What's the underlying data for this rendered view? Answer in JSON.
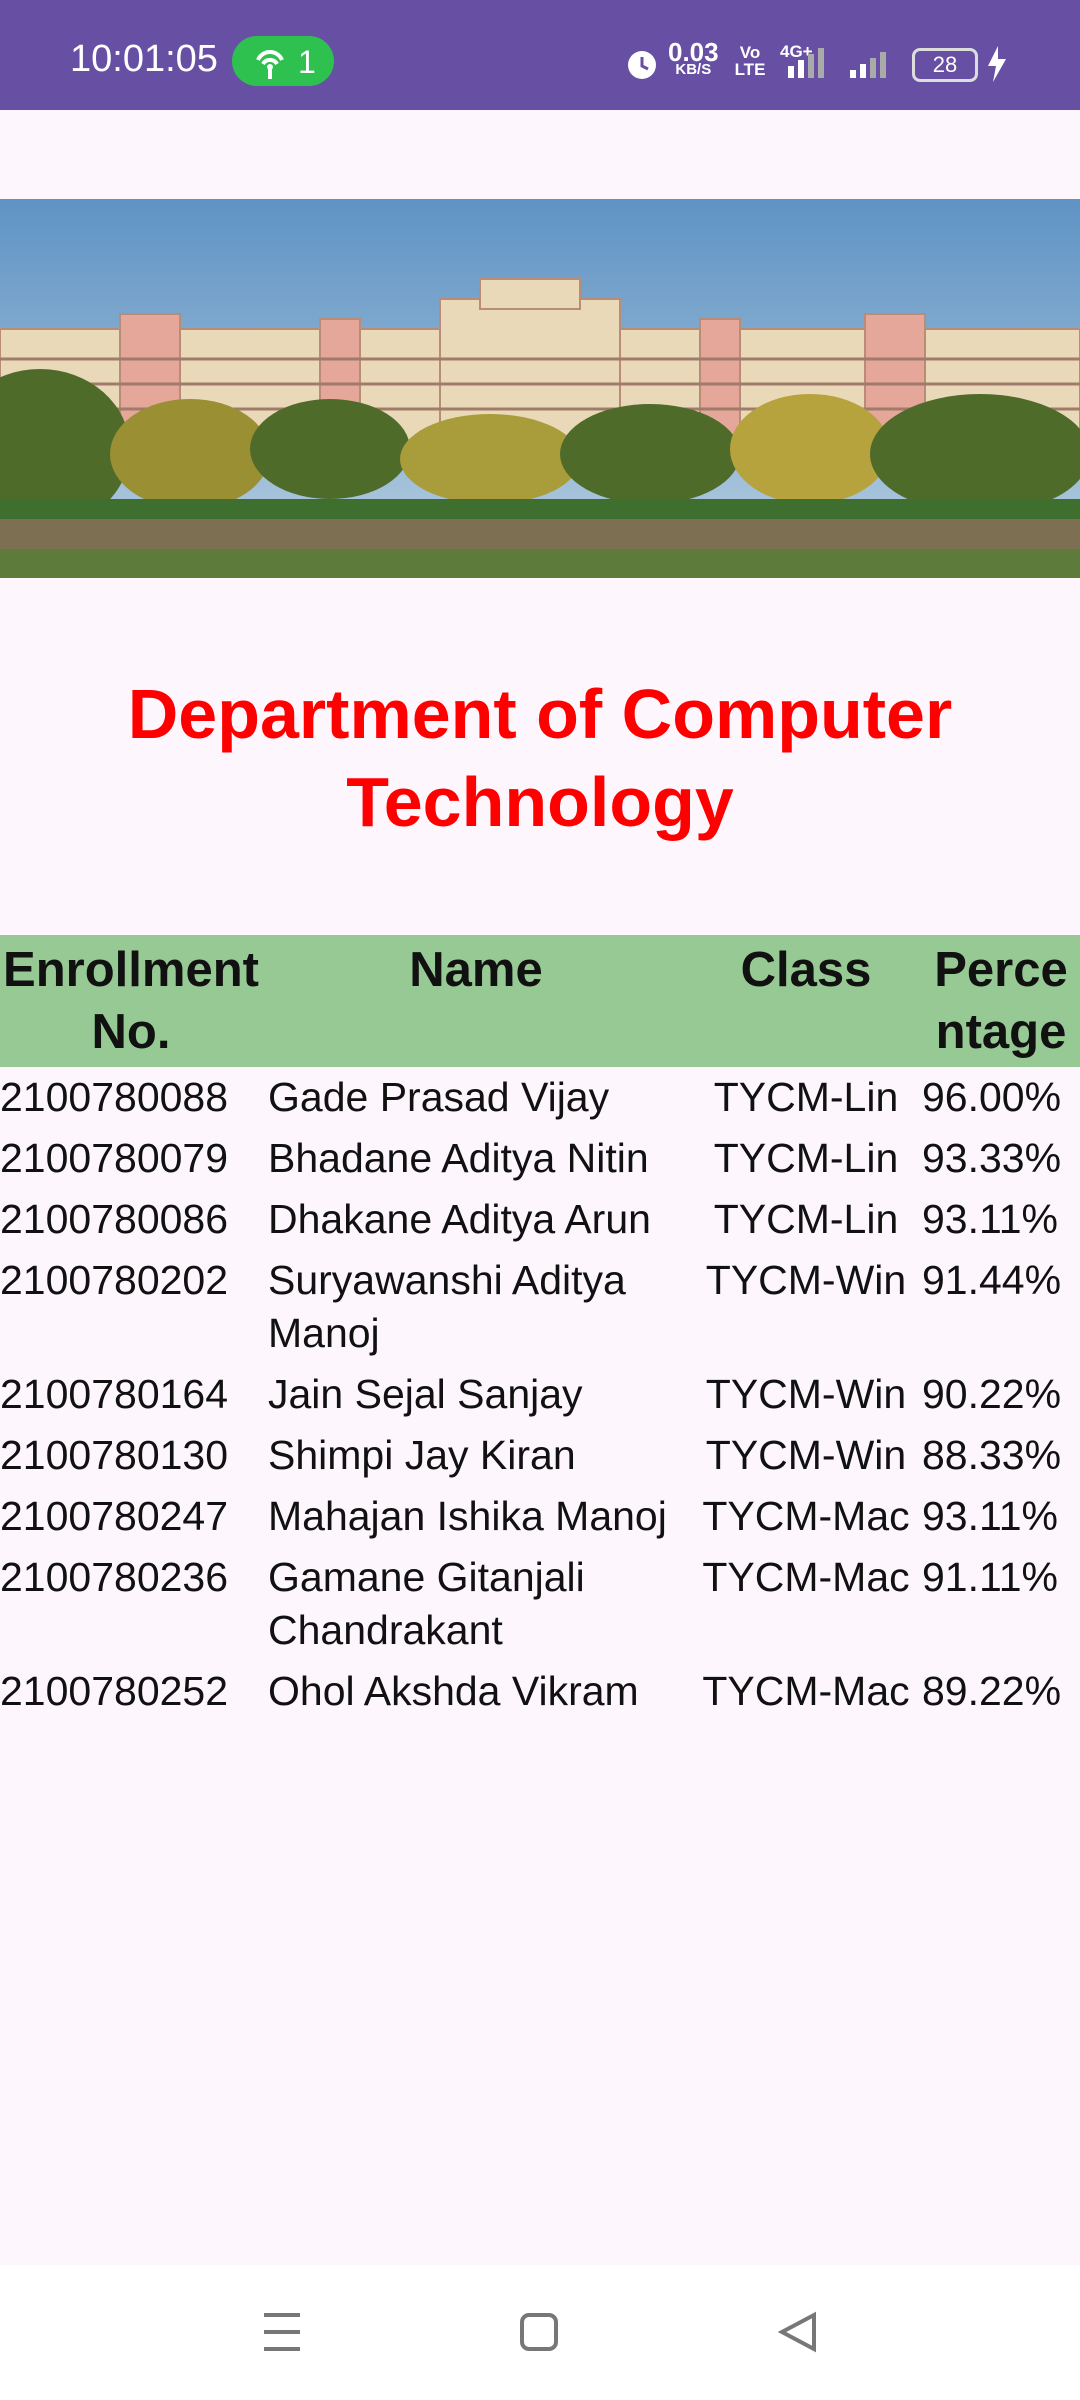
{
  "status_bar": {
    "time": "10:01:05",
    "hotspot": "1",
    "speed": "0.03",
    "speed_unit": "KB/S",
    "volte": "Vo LTE",
    "network": "4G+",
    "battery": "28"
  },
  "header": {
    "title": "Department of Computer Technology"
  },
  "table": {
    "columns": [
      "Enrollment No.",
      "Name",
      "Class",
      "Percentage"
    ],
    "rows": [
      [
        "2100780088",
        "Gade Prasad Vijay",
        "TYCM-Lin",
        "96.00%"
      ],
      [
        "2100780079",
        "Bhadane Aditya Nitin",
        "TYCM-Lin",
        "93.33%"
      ],
      [
        "2100780086",
        "Dhakane Aditya Arun",
        "TYCM-Lin",
        "93.11%"
      ],
      [
        "2100780202",
        "Suryawanshi Aditya Manoj",
        "TYCM-Win",
        "91.44%"
      ],
      [
        "2100780164",
        "Jain Sejal Sanjay",
        "TYCM-Win",
        "90.22%"
      ],
      [
        "2100780130",
        "Shimpi Jay Kiran",
        "TYCM-Win",
        "88.33%"
      ],
      [
        "2100780247",
        "Mahajan Ishika Manoj",
        "TYCM-Mac",
        "93.11%"
      ],
      [
        "2100780236",
        "Gamane Gitanjali Chandrakant",
        "TYCM-Mac",
        "91.11%"
      ],
      [
        "2100780252",
        "Ohol Akshda Vikram",
        "TYCM-Mac",
        "89.22%"
      ]
    ]
  }
}
